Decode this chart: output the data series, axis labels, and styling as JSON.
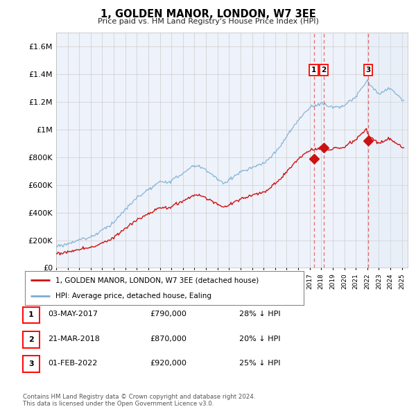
{
  "title": "1, GOLDEN MANOR, LONDON, W7 3EE",
  "subtitle": "Price paid vs. HM Land Registry's House Price Index (HPI)",
  "ylabel_ticks": [
    "£0",
    "£200K",
    "£400K",
    "£600K",
    "£800K",
    "£1M",
    "£1.2M",
    "£1.4M",
    "£1.6M"
  ],
  "ytick_values": [
    0,
    200000,
    400000,
    600000,
    800000,
    1000000,
    1200000,
    1400000,
    1600000
  ],
  "ylim": [
    0,
    1700000
  ],
  "xlim_start": 1995.0,
  "xlim_end": 2025.5,
  "hpi_color": "#7aadd4",
  "price_color": "#cc1111",
  "vline_color": "#dd3333",
  "shade_color": "#dde8f5",
  "transaction_years": [
    2017.35,
    2018.22,
    2022.08
  ],
  "transaction_prices": [
    790000,
    870000,
    920000
  ],
  "transaction_labels": [
    "1",
    "2",
    "3"
  ],
  "legend_label_red": "1, GOLDEN MANOR, LONDON, W7 3EE (detached house)",
  "legend_label_blue": "HPI: Average price, detached house, Ealing",
  "table_rows": [
    {
      "num": "1",
      "date": "03-MAY-2017",
      "price": "£790,000",
      "hpi": "28% ↓ HPI"
    },
    {
      "num": "2",
      "date": "21-MAR-2018",
      "price": "£870,000",
      "hpi": "20% ↓ HPI"
    },
    {
      "num": "3",
      "date": "01-FEB-2022",
      "price": "£920,000",
      "hpi": "25% ↓ HPI"
    }
  ],
  "footnote": "Contains HM Land Registry data © Crown copyright and database right 2024.\nThis data is licensed under the Open Government Licence v3.0.",
  "background_color": "#eef2fa"
}
